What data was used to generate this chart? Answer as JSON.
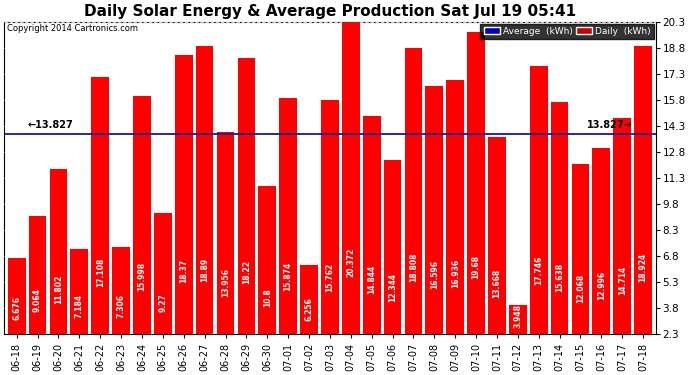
{
  "title": "Daily Solar Energy & Average Production Sat Jul 19 05:41",
  "copyright": "Copyright 2014 Cartronics.com",
  "average_value": 13.827,
  "categories": [
    "06-18",
    "06-19",
    "06-20",
    "06-21",
    "06-22",
    "06-23",
    "06-24",
    "06-25",
    "06-26",
    "06-27",
    "06-28",
    "06-29",
    "06-30",
    "07-01",
    "07-02",
    "07-03",
    "07-04",
    "07-05",
    "07-06",
    "07-07",
    "07-08",
    "07-09",
    "07-10",
    "07-11",
    "07-12",
    "07-13",
    "07-14",
    "07-15",
    "07-16",
    "07-17",
    "07-18"
  ],
  "values": [
    6.676,
    9.064,
    11.802,
    7.184,
    17.108,
    7.306,
    15.998,
    9.27,
    18.37,
    18.89,
    13.956,
    18.22,
    10.8,
    15.874,
    6.256,
    15.762,
    20.372,
    14.844,
    12.344,
    18.808,
    16.596,
    16.936,
    19.68,
    13.668,
    3.948,
    17.746,
    15.638,
    12.068,
    12.996,
    14.714,
    18.924
  ],
  "bar_color": "#ff0000",
  "average_line_color": "#0000aa",
  "ylim_min": 2.3,
  "ylim_max": 20.3,
  "yticks": [
    2.3,
    3.8,
    5.3,
    6.8,
    8.3,
    9.8,
    11.3,
    12.8,
    14.3,
    15.8,
    17.3,
    18.8,
    20.3
  ],
  "background_color": "#ffffff",
  "plot_bg_color": "#ffffff",
  "legend_avg_bg": "#0000cc",
  "legend_daily_bg": "#cc0000",
  "title_fontsize": 11,
  "bar_label_fontsize": 5.5,
  "tick_fontsize": 7.5,
  "avg_label_fontsize": 7
}
